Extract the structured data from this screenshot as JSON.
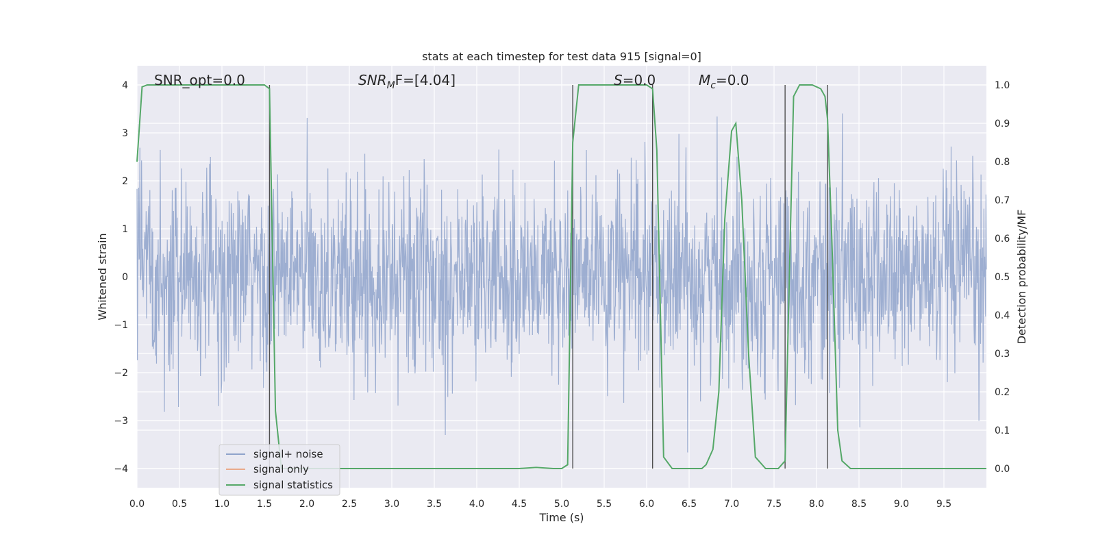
{
  "chart_data": {
    "type": "line",
    "title": "stats at each timestep for test data 915 [signal=0]",
    "xlabel": "Time (s)",
    "ylabel_left": "Whitened strain",
    "ylabel_right": "Detection probability/MF",
    "xlim": [
      0.0,
      10.0
    ],
    "ylim_left": [
      -4.4,
      4.4
    ],
    "ylim_right": [
      -0.05,
      1.05
    ],
    "xticks": [
      "0.0",
      "0.5",
      "1.0",
      "1.5",
      "2.0",
      "2.5",
      "3.0",
      "3.5",
      "4.0",
      "4.5",
      "5.0",
      "5.5",
      "6.0",
      "6.5",
      "7.0",
      "7.5",
      "8.0",
      "8.5",
      "9.0",
      "9.5"
    ],
    "yticks_left": [
      "4",
      "3",
      "2",
      "1",
      "0",
      "−1",
      "−2",
      "−3",
      "−4"
    ],
    "yticks_right": [
      "1.0",
      "0.9",
      "0.8",
      "0.7",
      "0.6",
      "0.5",
      "0.4",
      "0.3",
      "0.2",
      "0.1",
      "0.0"
    ],
    "grid": true,
    "legend_position": "lower-left",
    "annotations": {
      "snr_opt": "SNR_opt=0.0",
      "snr_mf_main": "SNR",
      "snr_mf_sub": "M",
      "snr_mf_rest": "F=[4.04]",
      "s_main": "S",
      "s_rest": "=0.0",
      "mc_main": "M",
      "mc_sub": "c",
      "mc_rest": "=0.0"
    },
    "vertical_lines_x": [
      1.56,
      5.13,
      6.07,
      7.63,
      8.13
    ],
    "series": [
      {
        "name": "signal+ noise",
        "color": "#8fa3cb",
        "axis": "left",
        "std": 1.0,
        "n_samples": 2048
      },
      {
        "name": "signal only",
        "color": "#e9a98a",
        "axis": "left",
        "x": [],
        "y": []
      },
      {
        "name": "signal statistics",
        "color": "#55a868",
        "axis": "right",
        "x": [
          0.0,
          0.06,
          0.12,
          0.5,
          1.0,
          1.5,
          1.56,
          1.63,
          1.7,
          2.0,
          3.0,
          4.0,
          4.5,
          4.7,
          4.9,
          5.0,
          5.07,
          5.13,
          5.2,
          5.25,
          5.5,
          6.0,
          6.07,
          6.12,
          6.2,
          6.3,
          6.5,
          6.65,
          6.7,
          6.78,
          6.85,
          6.92,
          7.0,
          7.05,
          7.12,
          7.2,
          7.28,
          7.4,
          7.55,
          7.63,
          7.68,
          7.73,
          7.8,
          7.95,
          8.05,
          8.1,
          8.13,
          8.18,
          8.25,
          8.3,
          8.4,
          8.6,
          9.0,
          10.0
        ],
        "y": [
          0.8,
          0.995,
          1.0,
          1.0,
          1.0,
          1.0,
          0.99,
          0.15,
          0.0,
          0.0,
          0.0,
          0.0,
          0.0,
          0.003,
          0.0,
          0.0,
          0.01,
          0.85,
          1.0,
          1.0,
          1.0,
          1.0,
          0.99,
          0.83,
          0.03,
          0.0,
          0.0,
          0.0,
          0.01,
          0.05,
          0.2,
          0.65,
          0.88,
          0.9,
          0.7,
          0.3,
          0.03,
          0.0,
          0.0,
          0.02,
          0.5,
          0.97,
          1.0,
          1.0,
          0.99,
          0.97,
          0.91,
          0.6,
          0.1,
          0.02,
          0.0,
          0.0,
          0.0,
          0.0
        ]
      }
    ]
  }
}
